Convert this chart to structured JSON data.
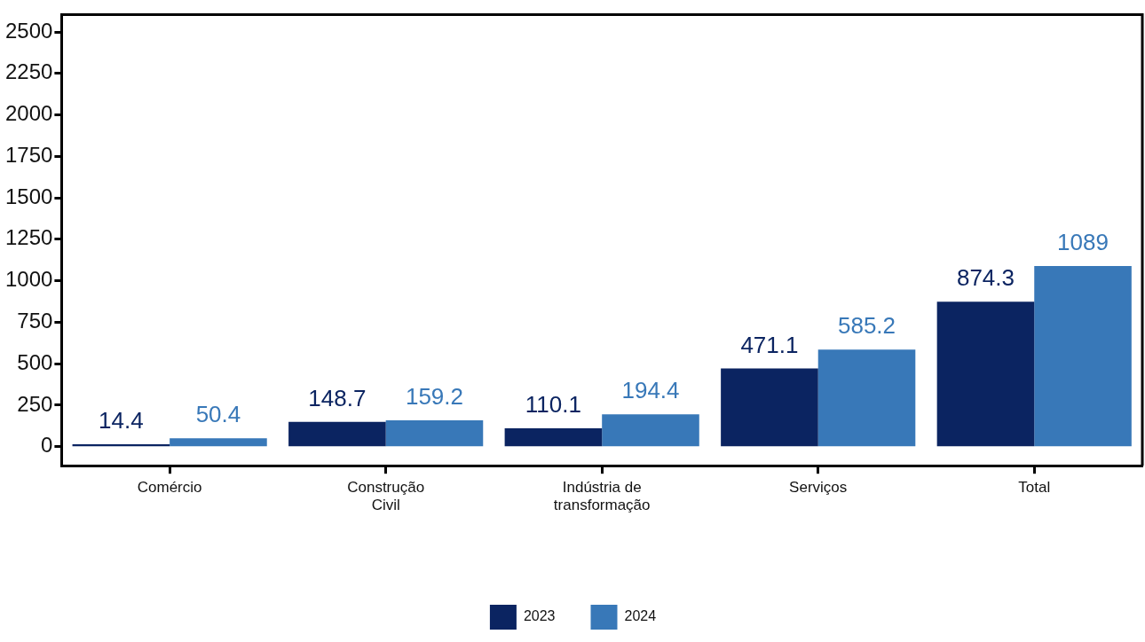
{
  "chart_data": {
    "type": "bar",
    "categories": [
      "Comércio",
      "Construção Civil",
      "Indústria de transformação",
      "Serviços",
      "Total"
    ],
    "series": [
      {
        "name": "2023",
        "color": "#0b2461",
        "values": [
          14.4,
          148.7,
          110.1,
          471.1,
          874.3
        ]
      },
      {
        "name": "2024",
        "color": "#3878b8",
        "values": [
          50.4,
          159.2,
          194.4,
          585.2,
          1089
        ]
      }
    ],
    "ylim": [
      -115,
      2605
    ],
    "yticks": [
      0,
      250,
      500,
      750,
      1000,
      1250,
      1500,
      1750,
      2000,
      2250,
      2500
    ],
    "data_labels": true,
    "grid": false,
    "legend": "bottom"
  }
}
